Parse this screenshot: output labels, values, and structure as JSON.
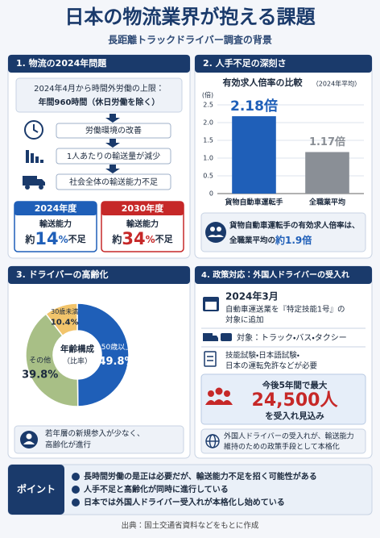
{
  "header": {
    "title": "日本の物流業界が抱える課題",
    "subtitle": "長距離トラックドライバー調査の背景"
  },
  "sections": [
    {
      "title": "1. 物流の2024年問題",
      "box": [
        "2024年4月から時間外労働の上限：",
        "年間960時間（休日労働を除く）"
      ],
      "flow": [
        "労働環境の改善",
        "1人あたりの輸送量が減少",
        "社会全体の輸送能力不足"
      ],
      "cards": [
        {
          "year": "2024年度",
          "label": "輸送能力",
          "prefix": "約",
          "value": 14,
          "unit": "%",
          "suffix": "不足"
        },
        {
          "year": "2030年度",
          "label": "輸送能力",
          "prefix": "約",
          "value": 34,
          "unit": "%",
          "suffix": "不足"
        }
      ]
    },
    {
      "title": "2. 人手不足の深刻さ",
      "note": [
        "貨物自動車運転手の有効求人倍率は、",
        "全職業平均の",
        "約1.9倍"
      ]
    },
    {
      "title": "3. ドライバーの高齢化",
      "note": [
        "若年層の新規参入が少なく、",
        "高齢化が進行"
      ]
    },
    {
      "title": "4. 政策対応：外国人ドライバーの受入れ",
      "date": "2024年3月",
      "date_text": [
        "自動車運送業を『特定技能1号』の",
        "対象に追加"
      ],
      "target": "対象：トラック・バス・タクシー",
      "requirements": [
        "技能試験・日本語試験・",
        "日本の運転免許などが必要"
      ],
      "forecast": {
        "lead": "今後5年間で最大",
        "number": "24,500人",
        "tail": "を受入れ見込み"
      },
      "conclusion": [
        "外国人ドライバーの受入れが、輸送能力",
        "維持のための政策手段として本格化"
      ]
    }
  ],
  "point": {
    "label": "ポイント",
    "items": [
      "長時間労働の是正は必要だが、輸送能力不足を招く可能性がある",
      "人手不足と高齢化が同時に進行している",
      "日本では外国人ドライバー受入れが本格化し始めている"
    ]
  },
  "footer": "出典：国土交通省資料などをもとに作成",
  "chart_data": [
    {
      "type": "bar",
      "title": "有効求人倍率の比較",
      "subtitle": "（2024年平均）",
      "y_label": "(倍)",
      "categories": [
        "貨物自動車運転手",
        "全職業平均"
      ],
      "values": [
        2.18,
        1.17
      ],
      "value_labels": [
        "2.18倍",
        "1.17倍"
      ],
      "colors": [
        "#1f5fb8",
        "#8a8f96"
      ],
      "ylim": [
        0,
        2.5
      ],
      "yticks": [
        0,
        0.5,
        {
          "value": 1,
          "label": "1.0"
        },
        1.5,
        {
          "value": 2,
          "label": "2.0"
        },
        2.5
      ],
      "grid": true
    },
    {
      "type": "pie",
      "center_label": [
        "年齢構成",
        "（比率）"
      ],
      "categories": [
        "50歳以上",
        "その他",
        "30歳未満"
      ],
      "values": [
        49.8,
        39.8,
        10.4
      ],
      "value_labels": [
        "49.8%",
        "39.8%",
        "10.4%"
      ],
      "colors": [
        "#1f5fb8",
        "#a8bf86",
        "#f2c46b"
      ]
    }
  ]
}
